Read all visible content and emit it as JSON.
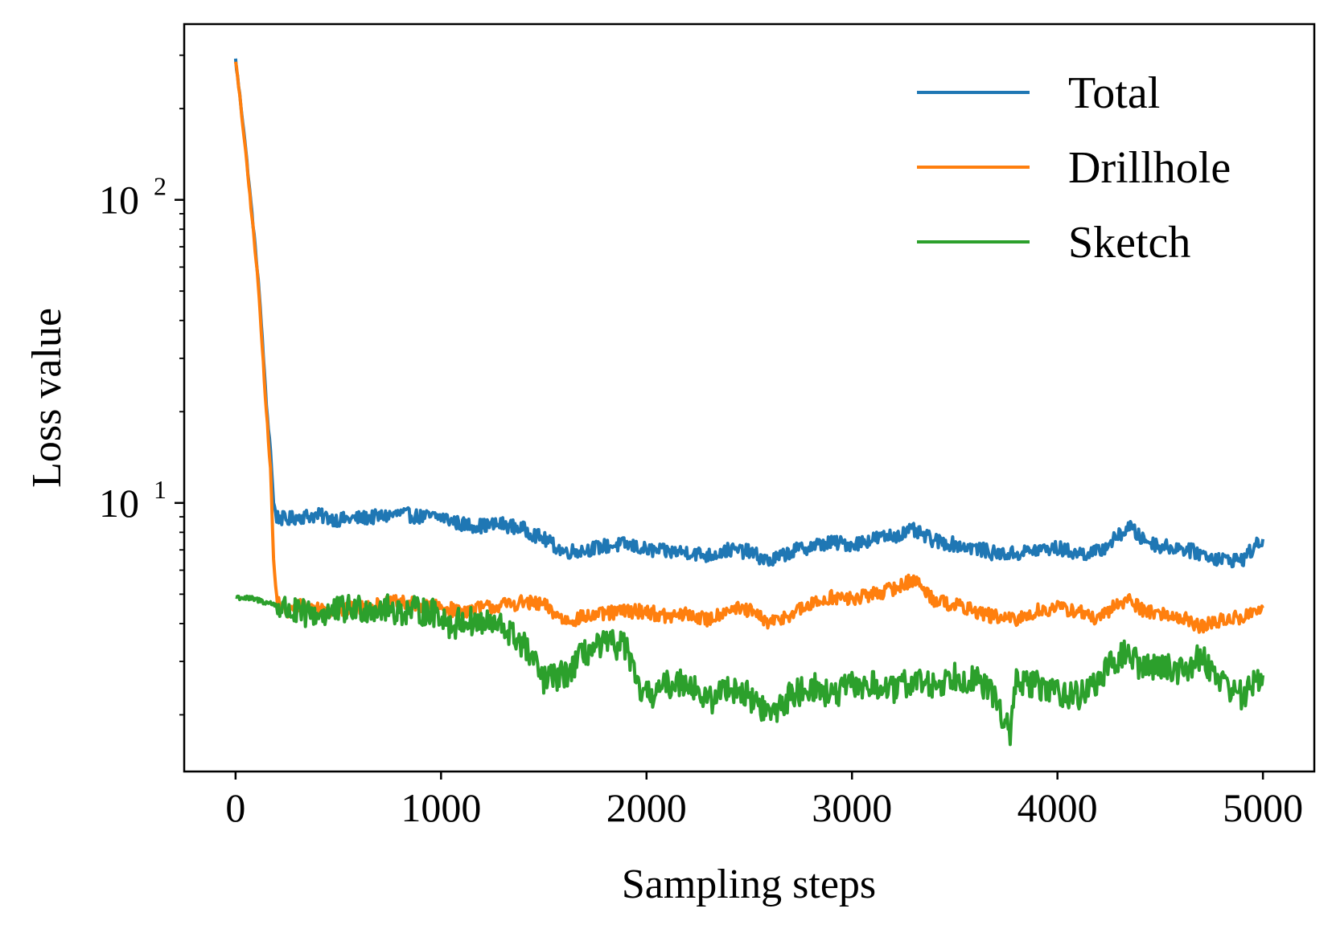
{
  "chart_data": {
    "type": "line",
    "xlabel": "Sampling steps",
    "ylabel": "Loss value",
    "xlim": [
      -250,
      5250
    ],
    "ylim": [
      1.3,
      380
    ],
    "yscale": "log",
    "x_ticks": [
      0,
      1000,
      2000,
      3000,
      4000,
      5000
    ],
    "x_tick_labels": [
      "0",
      "1000",
      "2000",
      "3000",
      "4000",
      "5000"
    ],
    "y_ticks": [
      10,
      100
    ],
    "y_tick_labels": [
      {
        "base": "10",
        "exp": "1"
      },
      {
        "base": "10",
        "exp": "2"
      }
    ],
    "grid": false,
    "legend_position": "top-right",
    "series": [
      {
        "name": "Total",
        "color": "#1f77b4",
        "x": [
          0,
          40,
          80,
          110,
          130,
          150,
          170,
          185,
          200,
          250,
          300,
          400,
          500,
          600,
          700,
          800,
          900,
          1000,
          1100,
          1200,
          1300,
          1400,
          1500,
          1600,
          1700,
          1800,
          1900,
          2000,
          2100,
          2200,
          2300,
          2400,
          2500,
          2600,
          2700,
          2800,
          2900,
          3000,
          3100,
          3200,
          3300,
          3400,
          3500,
          3600,
          3700,
          3800,
          3900,
          4000,
          4100,
          4200,
          4300,
          4350,
          4400,
          4500,
          4600,
          4700,
          4800,
          4900,
          5000
        ],
        "y": [
          290,
          170,
          90,
          55,
          35,
          21,
          15,
          10,
          9.0,
          8.8,
          9.0,
          9.1,
          8.8,
          8.9,
          9.0,
          9.2,
          9.0,
          9.0,
          8.5,
          8.4,
          8.5,
          8.2,
          7.6,
          6.9,
          7.0,
          7.2,
          7.3,
          7.0,
          6.9,
          6.9,
          6.7,
          7.0,
          6.9,
          6.4,
          6.9,
          7.2,
          7.4,
          7.3,
          7.6,
          7.8,
          8.1,
          7.5,
          7.3,
          7.1,
          6.8,
          6.8,
          7.0,
          7.1,
          6.8,
          6.9,
          7.8,
          8.4,
          7.7,
          7.2,
          7.1,
          6.8,
          6.5,
          6.5,
          7.6
        ]
      },
      {
        "name": "Drillhole",
        "color": "#ff7f0e",
        "x": [
          0,
          40,
          80,
          110,
          130,
          150,
          170,
          185,
          200,
          250,
          300,
          400,
          500,
          600,
          700,
          800,
          900,
          1000,
          1100,
          1200,
          1300,
          1400,
          1500,
          1600,
          1700,
          1800,
          1900,
          2000,
          2100,
          2200,
          2300,
          2400,
          2500,
          2600,
          2700,
          2800,
          2900,
          3000,
          3100,
          3200,
          3300,
          3400,
          3500,
          3600,
          3700,
          3800,
          3900,
          4000,
          4100,
          4200,
          4300,
          4350,
          4400,
          4500,
          4600,
          4700,
          4800,
          4900,
          5000
        ],
        "y": [
          290,
          165,
          88,
          53,
          33,
          20,
          13,
          6.5,
          4.8,
          4.3,
          4.6,
          4.5,
          4.4,
          4.5,
          4.6,
          4.7,
          4.6,
          4.5,
          4.4,
          4.5,
          4.6,
          4.7,
          4.6,
          4.1,
          4.2,
          4.3,
          4.4,
          4.4,
          4.2,
          4.3,
          4.1,
          4.5,
          4.4,
          4.0,
          4.3,
          4.6,
          4.9,
          4.8,
          5.0,
          5.2,
          5.6,
          4.8,
          4.6,
          4.4,
          4.2,
          4.1,
          4.4,
          4.5,
          4.4,
          4.1,
          4.7,
          4.8,
          4.5,
          4.3,
          4.2,
          3.9,
          4.1,
          4.2,
          4.5
        ]
      },
      {
        "name": "Sketch",
        "color": "#2ca02c",
        "x": [
          0,
          100,
          200,
          300,
          400,
          500,
          600,
          700,
          800,
          900,
          1000,
          1050,
          1100,
          1200,
          1300,
          1400,
          1450,
          1500,
          1600,
          1700,
          1800,
          1900,
          1950,
          2000,
          2100,
          2200,
          2300,
          2400,
          2500,
          2600,
          2700,
          2800,
          2900,
          3000,
          3100,
          3200,
          3300,
          3400,
          3500,
          3600,
          3700,
          3770,
          3800,
          3900,
          4000,
          4100,
          4200,
          4300,
          4350,
          4400,
          4500,
          4600,
          4700,
          4800,
          4900,
          5000
        ],
        "y": [
          4.9,
          4.8,
          4.6,
          4.3,
          4.3,
          4.4,
          4.5,
          4.5,
          4.4,
          4.4,
          4.3,
          3.9,
          4.1,
          4.0,
          3.9,
          3.4,
          3.0,
          2.6,
          2.7,
          3.2,
          3.4,
          3.4,
          2.5,
          2.3,
          2.5,
          2.6,
          2.2,
          2.5,
          2.3,
          2.0,
          2.3,
          2.5,
          2.3,
          2.5,
          2.5,
          2.4,
          2.6,
          2.5,
          2.7,
          2.6,
          2.3,
          1.7,
          2.6,
          2.5,
          2.4,
          2.3,
          2.6,
          3.1,
          3.2,
          2.9,
          2.9,
          2.8,
          3.1,
          2.6,
          2.3,
          2.7
        ]
      }
    ]
  }
}
